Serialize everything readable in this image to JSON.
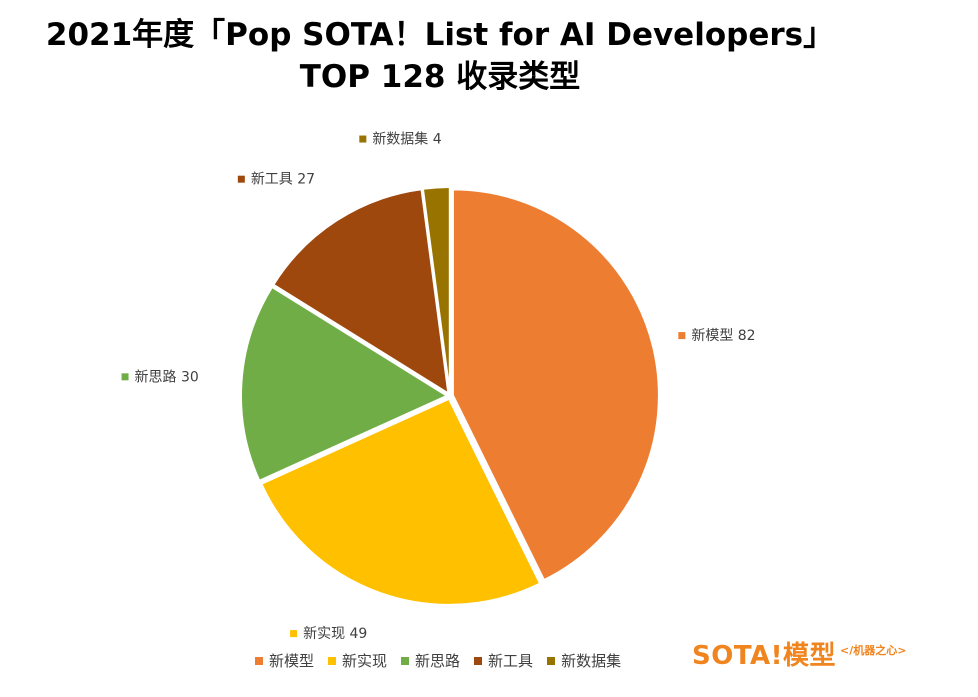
{
  "title": {
    "line1": "2021年度「Pop SOTA！List for AI Developers」",
    "line2": "TOP 128 收录类型"
  },
  "chart_data": {
    "type": "pie",
    "slices": [
      {
        "name": "新模型",
        "value": 82,
        "label": "新模型 82",
        "color": "#ED7D31"
      },
      {
        "name": "新实现",
        "value": 49,
        "label": "新实现 49",
        "color": "#FFC000"
      },
      {
        "name": "新思路",
        "value": 30,
        "label": "新思路 30",
        "color": "#70AD47"
      },
      {
        "name": "新工具",
        "value": 27,
        "label": "新工具 27",
        "color": "#9E480E"
      },
      {
        "name": "新数据集",
        "value": 4,
        "label": "新数据集 4",
        "color": "#997300"
      }
    ],
    "legend_position": "bottom"
  },
  "logo": {
    "main": "SOTA!模型",
    "sub": "</机器之心>"
  }
}
